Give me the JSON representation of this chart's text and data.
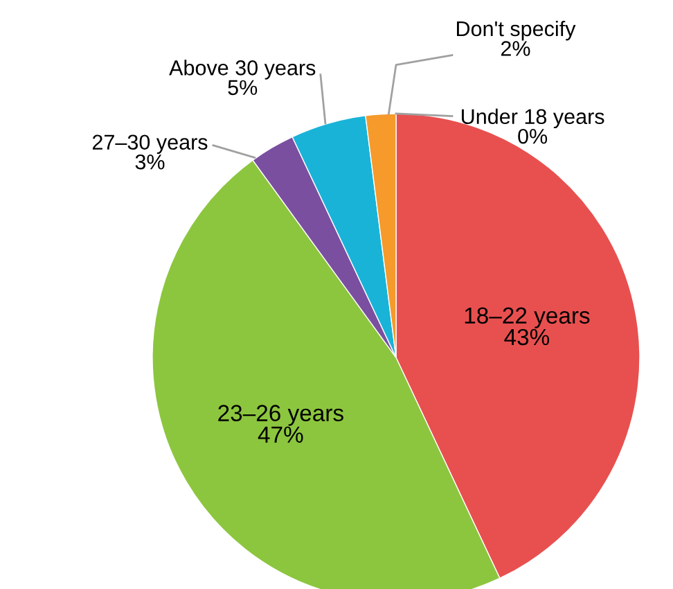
{
  "chart_data": {
    "type": "pie",
    "categories": [
      "Under 18 years",
      "18–22 years",
      "23–26 years",
      "27–30 years",
      "Above 30 years",
      "Don't specify"
    ],
    "values": [
      0,
      43,
      47,
      3,
      5,
      2
    ],
    "value_labels": [
      "0%",
      "43%",
      "47%",
      "3%",
      "5%",
      "2%"
    ],
    "colors": [
      "#f2c12e",
      "#e8504f",
      "#8cc63e",
      "#7b4fa0",
      "#1ab3d8",
      "#f59a2b"
    ]
  }
}
